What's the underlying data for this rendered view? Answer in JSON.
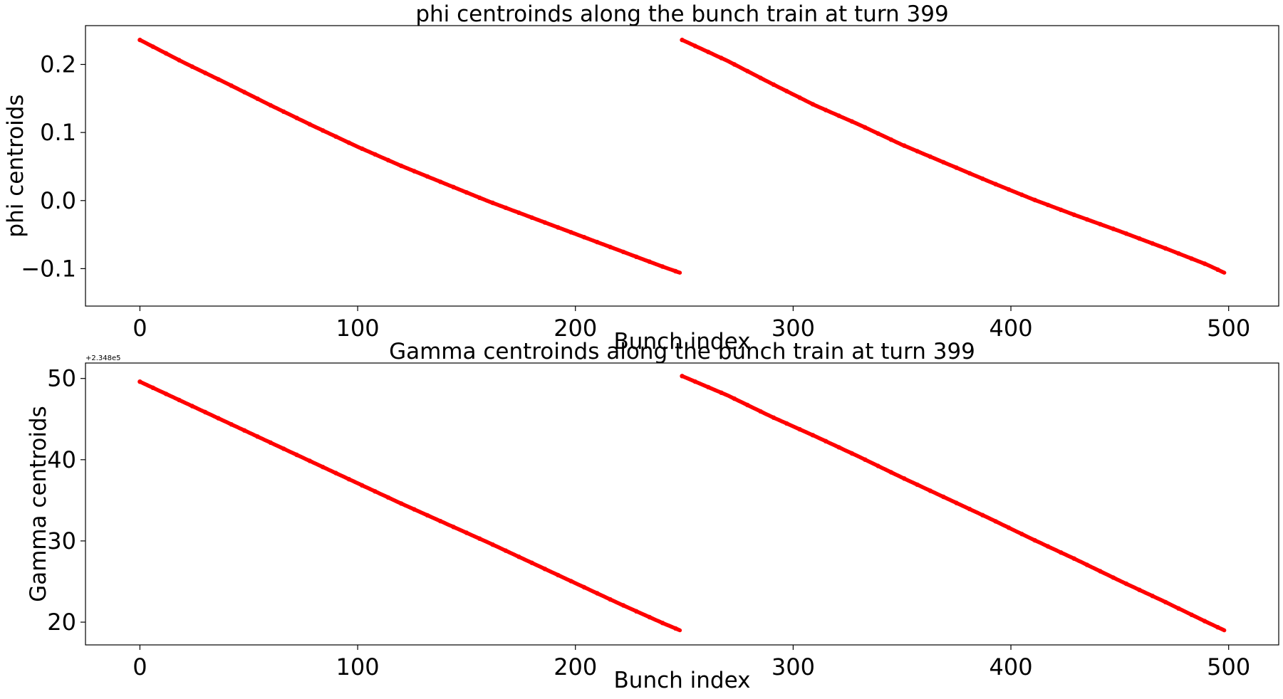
{
  "chart_data": [
    {
      "type": "scatter",
      "title": "phi centroinds along the bunch train at turn 399",
      "xlabel": "Bunch index",
      "ylabel": "phi centroids",
      "xlim": [
        -25,
        523
      ],
      "ylim": [
        -0.155,
        0.257
      ],
      "xticks": [
        0,
        100,
        200,
        300,
        400,
        500
      ],
      "xtick_labels": [
        "0",
        "100",
        "200",
        "300",
        "400",
        "500"
      ],
      "yticks": [
        -0.1,
        0.0,
        0.1,
        0.2
      ],
      "ytick_labels": [
        "−0.1",
        "0.0",
        "0.1",
        "0.2"
      ],
      "offset_text": "",
      "grid": false,
      "color": "#ff0000",
      "series": [
        {
          "x": [
            0,
            20,
            40,
            60,
            80,
            100,
            120,
            140,
            160,
            180,
            200,
            220,
            240,
            248
          ],
          "y": [
            0.236,
            0.203,
            0.172,
            0.14,
            0.109,
            0.079,
            0.051,
            0.025,
            -0.001,
            -0.025,
            -0.049,
            -0.073,
            -0.097,
            -0.106
          ]
        },
        {
          "x": [
            249,
            270,
            290,
            310,
            330,
            350,
            370,
            390,
            410,
            430,
            450,
            470,
            490,
            498
          ],
          "y": [
            0.236,
            0.205,
            0.172,
            0.14,
            0.112,
            0.082,
            0.055,
            0.028,
            0.002,
            -0.022,
            -0.045,
            -0.069,
            -0.094,
            -0.106
          ]
        }
      ]
    },
    {
      "type": "scatter",
      "title": "Gamma centroinds along the bunch train at turn 399",
      "xlabel": "Bunch index",
      "ylabel": "Gamma centroids",
      "xlim": [
        -25,
        523
      ],
      "ylim": [
        17.2,
        51.9
      ],
      "xticks": [
        0,
        100,
        200,
        300,
        400,
        500
      ],
      "xtick_labels": [
        "0",
        "100",
        "200",
        "300",
        "400",
        "500"
      ],
      "yticks": [
        20,
        30,
        40,
        50
      ],
      "ytick_labels": [
        "20",
        "30",
        "40",
        "50"
      ],
      "offset_text": "+2.348e5",
      "grid": false,
      "color": "#ff0000",
      "series": [
        {
          "x": [
            0,
            20,
            40,
            60,
            80,
            100,
            120,
            140,
            160,
            180,
            200,
            220,
            240,
            248
          ],
          "y": [
            49.6,
            47.1,
            44.6,
            42.1,
            39.6,
            37.1,
            34.6,
            32.2,
            29.8,
            27.3,
            24.8,
            22.3,
            19.9,
            19.0
          ]
        },
        {
          "x": [
            249,
            270,
            290,
            310,
            330,
            350,
            370,
            390,
            410,
            430,
            450,
            470,
            490,
            498
          ],
          "y": [
            50.3,
            47.9,
            45.3,
            42.9,
            40.4,
            37.8,
            35.3,
            32.8,
            30.2,
            27.7,
            25.1,
            22.6,
            20.0,
            19.0
          ]
        }
      ]
    }
  ]
}
